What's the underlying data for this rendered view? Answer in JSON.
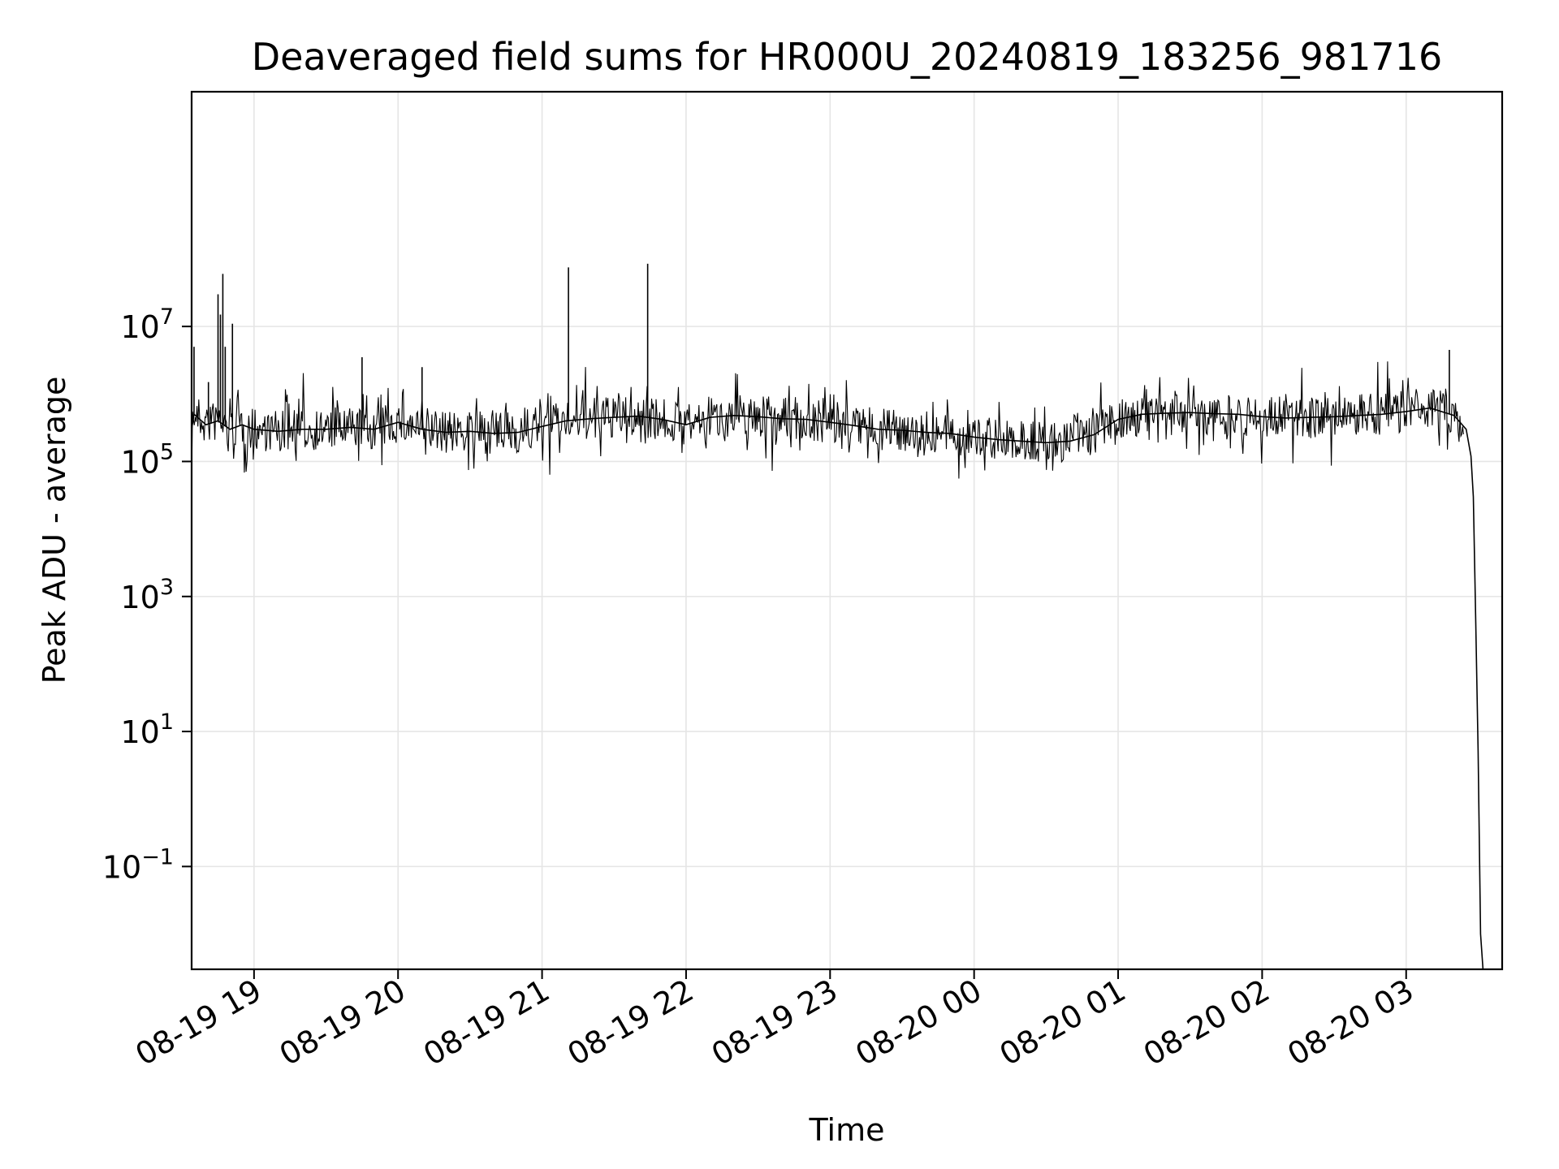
{
  "chart_data": {
    "type": "line",
    "title": "Deaveraged field sums for HR000U_20240819_183256_981716",
    "xlabel": "Time",
    "ylabel": "Peak ADU - average",
    "yscale": "log",
    "ylim": [
      0.003,
      30000000000
    ],
    "xlim": [
      "2024-08-19 18:34",
      "2024-08-20 03:40"
    ],
    "grid": true,
    "line_color": "#000000",
    "grid_color": "#e5e5e5",
    "x_ticks": [
      {
        "value": "2024-08-19 19:00",
        "label": "08-19 19"
      },
      {
        "value": "2024-08-19 20:00",
        "label": "08-19 20"
      },
      {
        "value": "2024-08-19 21:00",
        "label": "08-19 21"
      },
      {
        "value": "2024-08-19 22:00",
        "label": "08-19 22"
      },
      {
        "value": "2024-08-19 23:00",
        "label": "08-19 23"
      },
      {
        "value": "2024-08-20 00:00",
        "label": "08-20 00"
      },
      {
        "value": "2024-08-20 01:00",
        "label": "08-20 01"
      },
      {
        "value": "2024-08-20 02:00",
        "label": "08-20 02"
      },
      {
        "value": "2024-08-20 03:00",
        "label": "08-20 03"
      }
    ],
    "y_ticks": [
      {
        "value": 10000000,
        "base": "10",
        "exp": "7"
      },
      {
        "value": 100000,
        "base": "10",
        "exp": "5"
      },
      {
        "value": 1000,
        "base": "10",
        "exp": "3"
      },
      {
        "value": 10,
        "base": "10",
        "exp": "1"
      },
      {
        "value": 0.1,
        "base": "10",
        "exp": "−1"
      }
    ],
    "series": [
      {
        "x": [
          "2024-08-19 18:34",
          "2024-08-19 18:35",
          "2024-08-19 18:40",
          "2024-08-19 18:45",
          "2024-08-19 18:50",
          "2024-08-19 18:55",
          "2024-08-19 19:00",
          "2024-08-19 19:10",
          "2024-08-19 19:20",
          "2024-08-19 19:30",
          "2024-08-19 19:40",
          "2024-08-19 19:50",
          "2024-08-19 20:00",
          "2024-08-19 20:10",
          "2024-08-19 20:20",
          "2024-08-19 20:30",
          "2024-08-19 20:40",
          "2024-08-19 20:50",
          "2024-08-19 21:00",
          "2024-08-19 21:10",
          "2024-08-19 21:20",
          "2024-08-19 21:30",
          "2024-08-19 21:40",
          "2024-08-19 21:50",
          "2024-08-19 22:00",
          "2024-08-19 22:10",
          "2024-08-19 22:20",
          "2024-08-19 22:30",
          "2024-08-19 22:40",
          "2024-08-19 22:50",
          "2024-08-19 23:00",
          "2024-08-19 23:10",
          "2024-08-19 23:20",
          "2024-08-19 23:30",
          "2024-08-19 23:40",
          "2024-08-19 23:50",
          "2024-08-20 00:00",
          "2024-08-20 00:10",
          "2024-08-20 00:20",
          "2024-08-20 00:30",
          "2024-08-20 00:40",
          "2024-08-20 00:50",
          "2024-08-20 01:00",
          "2024-08-20 01:10",
          "2024-08-20 01:20",
          "2024-08-20 01:30",
          "2024-08-20 01:40",
          "2024-08-20 01:50",
          "2024-08-20 02:00",
          "2024-08-20 02:10",
          "2024-08-20 02:20",
          "2024-08-20 02:30",
          "2024-08-20 02:40",
          "2024-08-20 02:50",
          "2024-08-20 03:00",
          "2024-08-20 03:10",
          "2024-08-20 03:20",
          "2024-08-20 03:25",
          "2024-08-20 03:27",
          "2024-08-20 03:28",
          "2024-08-20 03:29",
          "2024-08-20 03:30",
          "2024-08-20 03:31",
          "2024-08-20 03:32"
        ],
        "y": [
          300000,
          500000,
          350000,
          400000,
          300000,
          350000,
          300000,
          280000,
          300000,
          300000,
          320000,
          300000,
          380000,
          300000,
          270000,
          280000,
          260000,
          270000,
          330000,
          400000,
          430000,
          450000,
          470000,
          420000,
          350000,
          450000,
          480000,
          460000,
          430000,
          420000,
          380000,
          340000,
          300000,
          290000,
          270000,
          260000,
          230000,
          210000,
          200000,
          190000,
          200000,
          250000,
          420000,
          500000,
          520000,
          530000,
          510000,
          500000,
          460000,
          440000,
          450000,
          460000,
          480000,
          500000,
          550000,
          620000,
          480000,
          300000,
          120000,
          30000,
          400,
          5,
          0.01,
          0.003
        ]
      }
    ],
    "spikes": [
      {
        "x": "2024-08-19 18:35",
        "y": 5000000
      },
      {
        "x": "2024-08-19 18:41",
        "y": 1500000
      },
      {
        "x": "2024-08-19 18:45",
        "y": 30000000
      },
      {
        "x": "2024-08-19 18:46",
        "y": 15000000
      },
      {
        "x": "2024-08-19 18:47",
        "y": 60000000
      },
      {
        "x": "2024-08-19 18:48",
        "y": 5000000
      },
      {
        "x": "2024-08-19 18:51",
        "y": 11000000
      },
      {
        "x": "2024-08-19 19:45",
        "y": 3500000
      },
      {
        "x": "2024-08-19 20:10",
        "y": 2500000
      },
      {
        "x": "2024-08-19 21:11",
        "y": 75000000
      },
      {
        "x": "2024-08-19 21:44",
        "y": 85000000
      },
      {
        "x": "2024-08-20 03:18",
        "y": 4500000
      }
    ]
  }
}
